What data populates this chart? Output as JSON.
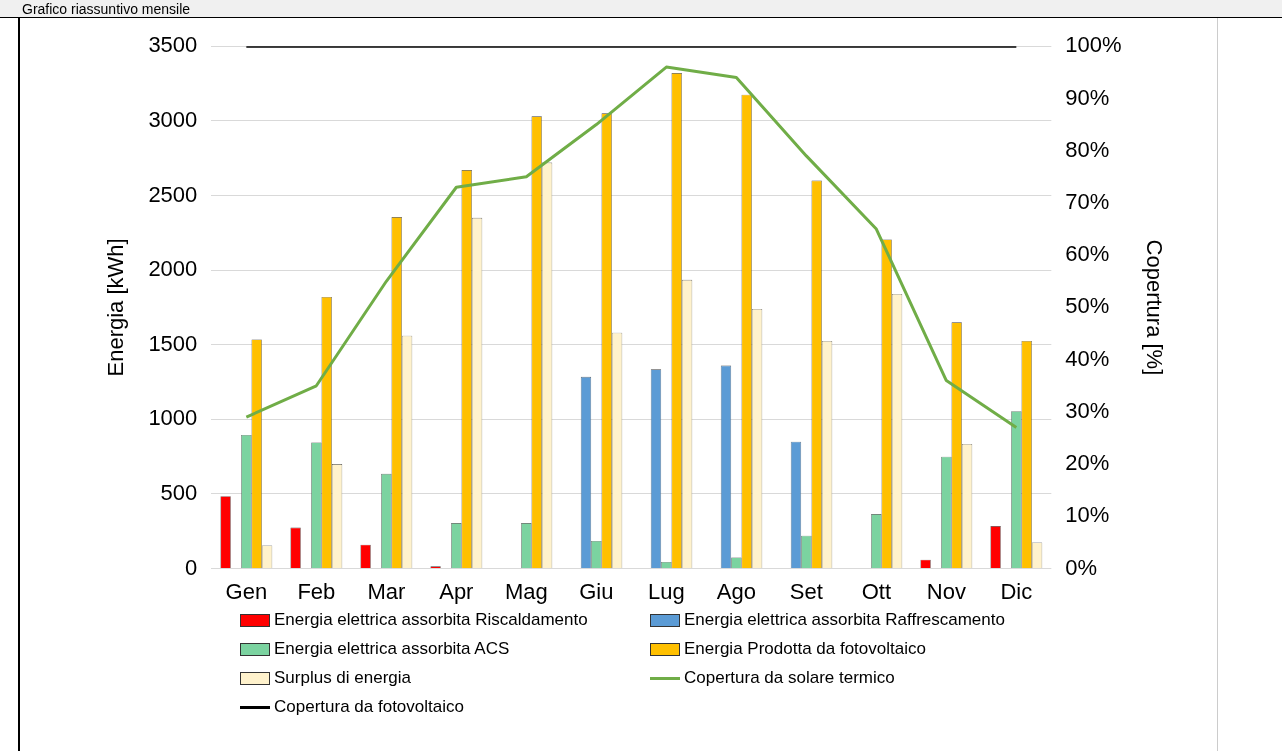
{
  "chart_data": {
    "type": "bar",
    "title": "Grafico riassuntivo mensile",
    "categories": [
      "Gen",
      "Feb",
      "Mar",
      "Apr",
      "Mag",
      "Giu",
      "Lug",
      "Ago",
      "Set",
      "Ott",
      "Nov",
      "Dic"
    ],
    "series": [
      {
        "name": "Energia elettrica assorbita Riscaldamento",
        "color": "#ff0000",
        "values": [
          485,
          275,
          160,
          15,
          0,
          0,
          0,
          0,
          0,
          0,
          60,
          285
        ]
      },
      {
        "name": "Energia elettrica assorbita Raffrescamento",
        "color": "#5b9bd5",
        "values": [
          0,
          0,
          0,
          0,
          0,
          1285,
          1335,
          1360,
          850,
          0,
          0,
          0
        ]
      },
      {
        "name": "Energia elettrica assorbita ACS",
        "color": "#7bd3a0",
        "values": [
          895,
          845,
          635,
          305,
          305,
          185,
          45,
          75,
          220,
          365,
          750,
          1055
        ]
      },
      {
        "name": "Energia Prodotta da fotovoltaico",
        "color": "#ffc000",
        "values": [
          1535,
          1820,
          2355,
          2670,
          3030,
          3050,
          3320,
          3175,
          2600,
          2205,
          1650,
          1525
        ]
      },
      {
        "name": "Surplus di energia",
        "color": "#fff2cc",
        "values": [
          155,
          700,
          1560,
          2350,
          2720,
          1580,
          1935,
          1740,
          1525,
          1840,
          835,
          175
        ]
      },
      {
        "name": "Copertura da solare termico",
        "type": "line",
        "axis": "y2",
        "color": "#70ad47",
        "values": [
          29,
          35,
          55,
          73,
          75,
          85,
          96,
          94,
          79,
          65,
          36,
          27
        ]
      },
      {
        "name": "Copertura da fotovoltaico",
        "type": "line",
        "axis": "y2",
        "color": "#000000",
        "values": [
          100,
          100,
          100,
          100,
          100,
          100,
          100,
          100,
          100,
          100,
          100,
          100
        ]
      }
    ],
    "ylabel": "Energia [kWh]",
    "y2label": "Copertura [%]",
    "ylim": [
      0,
      3500
    ],
    "yticks": [
      0,
      500,
      1000,
      1500,
      2000,
      2500,
      3000,
      3500
    ],
    "y2lim": [
      0,
      100
    ],
    "y2ticks": [
      {
        "value": 0,
        "label": "0%"
      },
      {
        "value": 10,
        "label": "10%"
      },
      {
        "value": 20,
        "label": "20%"
      },
      {
        "value": 30,
        "label": "30%"
      },
      {
        "value": 40,
        "label": "40%"
      },
      {
        "value": 50,
        "label": "50%"
      },
      {
        "value": 60,
        "label": "60%"
      },
      {
        "value": 70,
        "label": "70%"
      },
      {
        "value": 80,
        "label": "80%"
      },
      {
        "value": 90,
        "label": "90%"
      },
      {
        "value": 100,
        "label": "100%"
      }
    ],
    "grid": "y",
    "legend": "bottom",
    "marker": "none",
    "line_style": "solid"
  }
}
